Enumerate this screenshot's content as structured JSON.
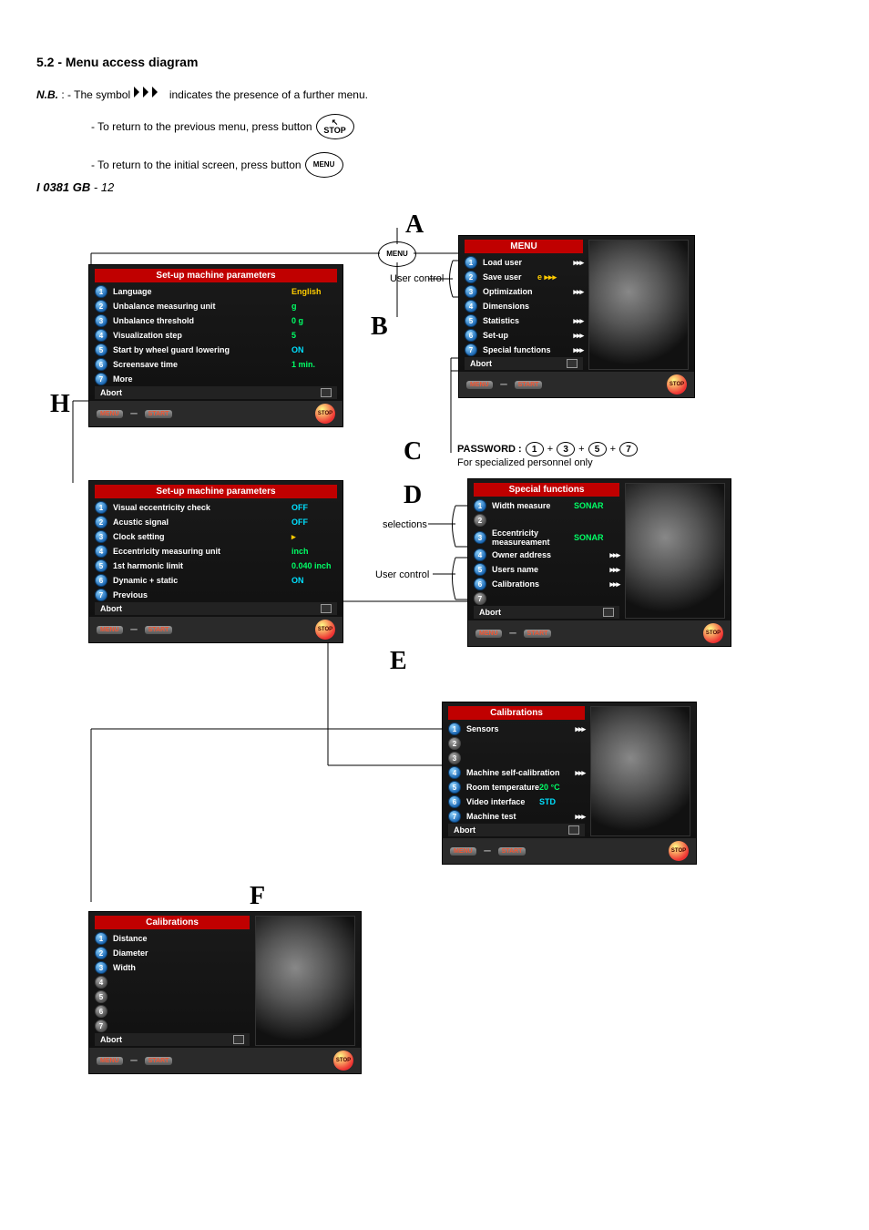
{
  "section_title": "5.2 - Menu access diagram",
  "nb_label": "N.B.",
  "nb_colon": " :    ",
  "nb_line1_a": "- The symbol ",
  "nb_line1_b": " indicates the presence of a further menu.",
  "nb_line2_a": "- To return to the previous menu, press button ",
  "stop_btn_top": "↖",
  "stop_btn_label": "STOP",
  "nb_line3_a": "- To return to the initial screen, press button ",
  "menu_btn_label": "MENU",
  "letters": {
    "A": "A",
    "B": "B",
    "C": "C",
    "D": "D",
    "E": "E",
    "F": "F",
    "H": "H"
  },
  "password_label": "PASSWORD :",
  "password_digits": [
    "1",
    "3",
    "5",
    "7"
  ],
  "password_plus": "+",
  "password_note": "For specialized personnel only",
  "captions": {
    "user_control1": "User control",
    "user_control2": "User control",
    "selections": "selections"
  },
  "arrow_glyph": "▸▸▸",
  "panel_A": {
    "title": "MENU",
    "rows": [
      {
        "n": "1",
        "label": "Load user",
        "arrow": true
      },
      {
        "n": "2",
        "label": "Save user",
        "val": "e ▸▸▸",
        "valcolor": ""
      },
      {
        "n": "3",
        "label": "Optimization",
        "arrow": true
      },
      {
        "n": "4",
        "label": "Dimensions"
      },
      {
        "n": "5",
        "label": "Statistics",
        "arrow": true
      },
      {
        "n": "6",
        "label": "Set-up",
        "arrow": true
      },
      {
        "n": "7",
        "label": "Special functions",
        "arrow": true
      }
    ],
    "abort": "Abort"
  },
  "panel_H1": {
    "title": "Set-up machine parameters",
    "rows": [
      {
        "n": "1",
        "label": "Language",
        "val": "English"
      },
      {
        "n": "2",
        "label": "Unbalance measuring unit",
        "val": "g",
        "valcolor": "green"
      },
      {
        "n": "3",
        "label": "Unbalance threshold",
        "val": "0  g",
        "valcolor": "green"
      },
      {
        "n": "4",
        "label": "Visualization step",
        "val": "5",
        "valcolor": "green"
      },
      {
        "n": "5",
        "label": "Start by wheel guard lowering",
        "val": "ON",
        "valcolor": "cyan"
      },
      {
        "n": "6",
        "label": "Screensave time",
        "val": "1 min.",
        "valcolor": "green"
      },
      {
        "n": "7",
        "label": "More"
      }
    ],
    "abort": "Abort"
  },
  "panel_H2": {
    "title": "Set-up machine parameters",
    "rows": [
      {
        "n": "1",
        "label": "Visual eccentricity check",
        "val": "OFF",
        "valcolor": "cyan"
      },
      {
        "n": "2",
        "label": "Acustic signal",
        "val": "OFF",
        "valcolor": "cyan"
      },
      {
        "n": "3",
        "label": "Clock setting",
        "val": "▸"
      },
      {
        "n": "4",
        "label": "Eccentricity measuring unit",
        "val": "inch",
        "valcolor": "green"
      },
      {
        "n": "5",
        "label": "1st harmonic limit",
        "val": "0.040 inch",
        "valcolor": "green"
      },
      {
        "n": "6",
        "label": "Dynamic + static",
        "val": "ON",
        "valcolor": "cyan"
      },
      {
        "n": "7",
        "label": "Previous"
      }
    ],
    "abort": "Abort"
  },
  "panel_D": {
    "title": "Special functions",
    "rows": [
      {
        "n": "1",
        "label": "Width measure",
        "val": "SONAR",
        "valcolor": "green"
      },
      {
        "n": "2",
        "dim": true,
        "label": ""
      },
      {
        "n": "3",
        "label": "Eccentricity measureament",
        "val": "SONAR",
        "valcolor": "green"
      },
      {
        "n": "4",
        "label": "Owner address",
        "arrow": true
      },
      {
        "n": "5",
        "label": "Users name",
        "arrow": true
      },
      {
        "n": "6",
        "label": "Calibrations",
        "arrow": true
      },
      {
        "n": "7",
        "dim": true,
        "label": ""
      }
    ],
    "abort": "Abort"
  },
  "panel_E": {
    "title": "Calibrations",
    "rows": [
      {
        "n": "1",
        "label": "Sensors",
        "arrow": true
      },
      {
        "n": "2",
        "dim": true,
        "label": ""
      },
      {
        "n": "3",
        "dim": true,
        "label": ""
      },
      {
        "n": "4",
        "label": "Machine self-calibration",
        "arrow": true
      },
      {
        "n": "5",
        "label": "Room temperature",
        "val": "20 °C",
        "valcolor": "green"
      },
      {
        "n": "6",
        "label": "Video interface",
        "val": "STD",
        "valcolor": "cyan"
      },
      {
        "n": "7",
        "label": "Machine test",
        "arrow": true
      }
    ],
    "abort": "Abort"
  },
  "panel_F": {
    "title": "Calibrations",
    "rows": [
      {
        "n": "1",
        "label": "Distance"
      },
      {
        "n": "2",
        "label": "Diameter"
      },
      {
        "n": "3",
        "label": "Width"
      },
      {
        "n": "4",
        "dim": true,
        "label": ""
      },
      {
        "n": "5",
        "dim": true,
        "label": ""
      },
      {
        "n": "6",
        "dim": true,
        "label": ""
      },
      {
        "n": "7",
        "dim": true,
        "label": ""
      }
    ],
    "abort": "Abort"
  },
  "btnbar": {
    "menu": "MENU",
    "start": "START",
    "stop": "STOP"
  },
  "doc_footer_a": "I 0381  GB",
  "doc_footer_b": " - 12"
}
